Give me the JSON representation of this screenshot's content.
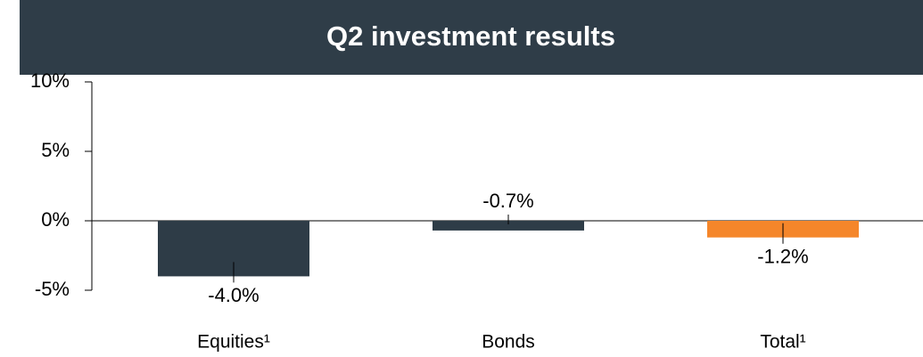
{
  "chart_data": {
    "type": "bar",
    "title": "Q2 investment results",
    "categories": [
      "Equities¹",
      "Bonds",
      "Total¹"
    ],
    "values": [
      -4.0,
      -0.7,
      -1.2
    ],
    "value_labels": [
      "-4.0%",
      "-0.7%",
      "-1.2%"
    ],
    "colors": [
      "#2e3c47",
      "#2e3c47",
      "#f5862a"
    ],
    "ylim": [
      -5,
      10
    ],
    "yticks": [
      {
        "value": -5,
        "label": "-5%"
      },
      {
        "value": 0,
        "label": "0%"
      },
      {
        "value": 5,
        "label": "5%"
      },
      {
        "value": 10,
        "label": "10%"
      }
    ]
  }
}
